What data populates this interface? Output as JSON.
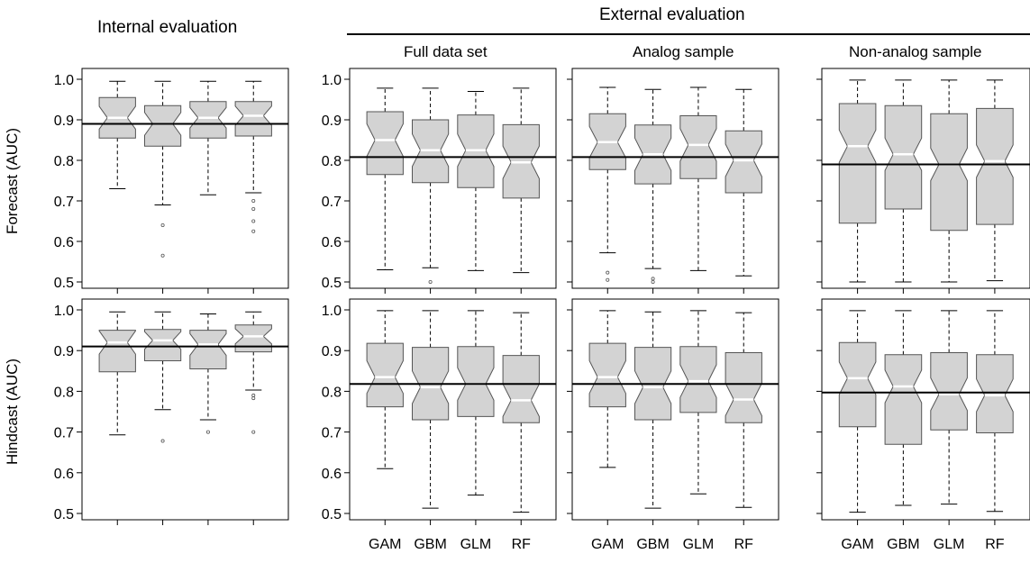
{
  "headers": {
    "internal": "Internal evaluation",
    "external": "External evaluation",
    "full": "Full data set",
    "analog": "Analog sample",
    "nonanalog": "Non-analog sample"
  },
  "row_labels": {
    "forecast": "Forecast (AUC)",
    "hindcast": "Hindcast (AUC)"
  },
  "chart_data": [
    {
      "type": "boxplot",
      "notched": true,
      "panel": "forecast-internal",
      "ylabel": "Forecast (AUC)",
      "ylim": [
        0.5,
        1.0
      ],
      "yticks": [
        "0.5",
        "0.6",
        "0.7",
        "0.8",
        "0.9",
        "1.0"
      ],
      "reference_line": 0.89,
      "categories": [
        "GAM",
        "GBM",
        "GLM",
        "RF"
      ],
      "boxes": [
        {
          "min": 0.73,
          "q1": 0.855,
          "median": 0.905,
          "q3": 0.955,
          "max": 0.995,
          "outliers": []
        },
        {
          "min": 0.69,
          "q1": 0.835,
          "median": 0.89,
          "q3": 0.935,
          "max": 0.995,
          "outliers": [
            0.64,
            0.565
          ]
        },
        {
          "min": 0.715,
          "q1": 0.855,
          "median": 0.905,
          "q3": 0.945,
          "max": 0.995,
          "outliers": []
        },
        {
          "min": 0.72,
          "q1": 0.86,
          "median": 0.91,
          "q3": 0.945,
          "max": 0.995,
          "outliers": [
            0.7,
            0.68,
            0.65,
            0.625
          ]
        }
      ]
    },
    {
      "type": "boxplot",
      "notched": true,
      "panel": "forecast-full",
      "ylim": [
        0.5,
        1.0
      ],
      "yticks": [
        "0.5",
        "0.6",
        "0.7",
        "0.8",
        "0.9",
        "1.0"
      ],
      "reference_line": 0.808,
      "categories": [
        "GAM",
        "GBM",
        "GLM",
        "RF"
      ],
      "boxes": [
        {
          "min": 0.53,
          "q1": 0.765,
          "median": 0.85,
          "q3": 0.92,
          "max": 0.978,
          "outliers": []
        },
        {
          "min": 0.535,
          "q1": 0.745,
          "median": 0.825,
          "q3": 0.9,
          "max": 0.978,
          "outliers": [
            0.5
          ]
        },
        {
          "min": 0.528,
          "q1": 0.733,
          "median": 0.825,
          "q3": 0.912,
          "max": 0.97,
          "outliers": []
        },
        {
          "min": 0.523,
          "q1": 0.707,
          "median": 0.795,
          "q3": 0.888,
          "max": 0.978,
          "outliers": []
        }
      ]
    },
    {
      "type": "boxplot",
      "notched": true,
      "panel": "forecast-analog",
      "ylim": [
        0.5,
        1.0
      ],
      "reference_line": 0.808,
      "categories": [
        "GAM",
        "GBM",
        "GLM",
        "RF"
      ],
      "boxes": [
        {
          "min": 0.572,
          "q1": 0.777,
          "median": 0.845,
          "q3": 0.915,
          "max": 0.98,
          "outliers": [
            0.523,
            0.505
          ]
        },
        {
          "min": 0.533,
          "q1": 0.742,
          "median": 0.815,
          "q3": 0.887,
          "max": 0.975,
          "outliers": [
            0.508,
            0.5
          ]
        },
        {
          "min": 0.528,
          "q1": 0.755,
          "median": 0.838,
          "q3": 0.91,
          "max": 0.98,
          "outliers": []
        },
        {
          "min": 0.515,
          "q1": 0.72,
          "median": 0.8,
          "q3": 0.873,
          "max": 0.975,
          "outliers": []
        }
      ]
    },
    {
      "type": "boxplot",
      "notched": true,
      "panel": "forecast-nonanalog",
      "ylim": [
        0.5,
        1.0
      ],
      "reference_line": 0.79,
      "categories": [
        "GAM",
        "GBM",
        "GLM",
        "RF"
      ],
      "boxes": [
        {
          "min": 0.5,
          "q1": 0.645,
          "median": 0.835,
          "q3": 0.94,
          "max": 0.998,
          "outliers": []
        },
        {
          "min": 0.5,
          "q1": 0.68,
          "median": 0.815,
          "q3": 0.935,
          "max": 0.998,
          "outliers": []
        },
        {
          "min": 0.5,
          "q1": 0.627,
          "median": 0.79,
          "q3": 0.915,
          "max": 0.998,
          "outliers": []
        },
        {
          "min": 0.503,
          "q1": 0.642,
          "median": 0.798,
          "q3": 0.928,
          "max": 0.998,
          "outliers": []
        }
      ]
    },
    {
      "type": "boxplot",
      "notched": true,
      "panel": "hindcast-internal",
      "ylabel": "Hindcast (AUC)",
      "ylim": [
        0.5,
        1.0
      ],
      "yticks": [
        "0.5",
        "0.6",
        "0.7",
        "0.8",
        "0.9",
        "1.0"
      ],
      "reference_line": 0.91,
      "categories": [
        "GAM",
        "GBM",
        "GLM",
        "RF"
      ],
      "boxes": [
        {
          "min": 0.693,
          "q1": 0.848,
          "median": 0.92,
          "q3": 0.95,
          "max": 0.995,
          "outliers": []
        },
        {
          "min": 0.755,
          "q1": 0.875,
          "median": 0.925,
          "q3": 0.952,
          "max": 0.995,
          "outliers": [
            0.678
          ]
        },
        {
          "min": 0.73,
          "q1": 0.855,
          "median": 0.915,
          "q3": 0.95,
          "max": 0.99,
          "outliers": [
            0.7
          ]
        },
        {
          "min": 0.803,
          "q1": 0.897,
          "median": 0.935,
          "q3": 0.963,
          "max": 0.995,
          "outliers": [
            0.79,
            0.783,
            0.7
          ]
        }
      ]
    },
    {
      "type": "boxplot",
      "notched": true,
      "panel": "hindcast-full",
      "ylim": [
        0.5,
        1.0
      ],
      "yticks": [
        "0.5",
        "0.6",
        "0.7",
        "0.8",
        "0.9",
        "1.0"
      ],
      "reference_line": 0.818,
      "categories": [
        "GAM",
        "GBM",
        "GLM",
        "RF"
      ],
      "xlabels": [
        "GAM",
        "GBM",
        "GLM",
        "RF"
      ],
      "boxes": [
        {
          "min": 0.61,
          "q1": 0.762,
          "median": 0.835,
          "q3": 0.918,
          "max": 0.998,
          "outliers": []
        },
        {
          "min": 0.513,
          "q1": 0.73,
          "median": 0.81,
          "q3": 0.908,
          "max": 0.998,
          "outliers": []
        },
        {
          "min": 0.545,
          "q1": 0.738,
          "median": 0.818,
          "q3": 0.91,
          "max": 0.998,
          "outliers": []
        },
        {
          "min": 0.503,
          "q1": 0.723,
          "median": 0.778,
          "q3": 0.888,
          "max": 0.993,
          "outliers": []
        }
      ]
    },
    {
      "type": "boxplot",
      "notched": true,
      "panel": "hindcast-analog",
      "ylim": [
        0.5,
        1.0
      ],
      "reference_line": 0.818,
      "categories": [
        "GAM",
        "GBM",
        "GLM",
        "RF"
      ],
      "xlabels": [
        "GAM",
        "GBM",
        "GLM",
        "RF"
      ],
      "boxes": [
        {
          "min": 0.613,
          "q1": 0.762,
          "median": 0.835,
          "q3": 0.918,
          "max": 0.998,
          "outliers": []
        },
        {
          "min": 0.513,
          "q1": 0.73,
          "median": 0.81,
          "q3": 0.908,
          "max": 0.995,
          "outliers": []
        },
        {
          "min": 0.548,
          "q1": 0.748,
          "median": 0.825,
          "q3": 0.91,
          "max": 0.998,
          "outliers": []
        },
        {
          "min": 0.515,
          "q1": 0.723,
          "median": 0.78,
          "q3": 0.895,
          "max": 0.993,
          "outliers": []
        }
      ]
    },
    {
      "type": "boxplot",
      "notched": true,
      "panel": "hindcast-nonanalog",
      "ylim": [
        0.5,
        1.0
      ],
      "reference_line": 0.797,
      "categories": [
        "GAM",
        "GBM",
        "GLM",
        "RF"
      ],
      "xlabels": [
        "GAM",
        "GBM",
        "GLM",
        "RF"
      ],
      "boxes": [
        {
          "min": 0.503,
          "q1": 0.713,
          "median": 0.832,
          "q3": 0.92,
          "max": 0.998,
          "outliers": []
        },
        {
          "min": 0.52,
          "q1": 0.67,
          "median": 0.812,
          "q3": 0.89,
          "max": 0.998,
          "outliers": []
        },
        {
          "min": 0.523,
          "q1": 0.705,
          "median": 0.793,
          "q3": 0.895,
          "max": 0.998,
          "outliers": []
        },
        {
          "min": 0.505,
          "q1": 0.698,
          "median": 0.79,
          "q3": 0.89,
          "max": 0.998,
          "outliers": []
        }
      ]
    }
  ],
  "colors": {
    "box_fill": "#d3d3d3",
    "box_stroke": "#555555",
    "median": "#ffffff",
    "reference_line": "#000000"
  }
}
